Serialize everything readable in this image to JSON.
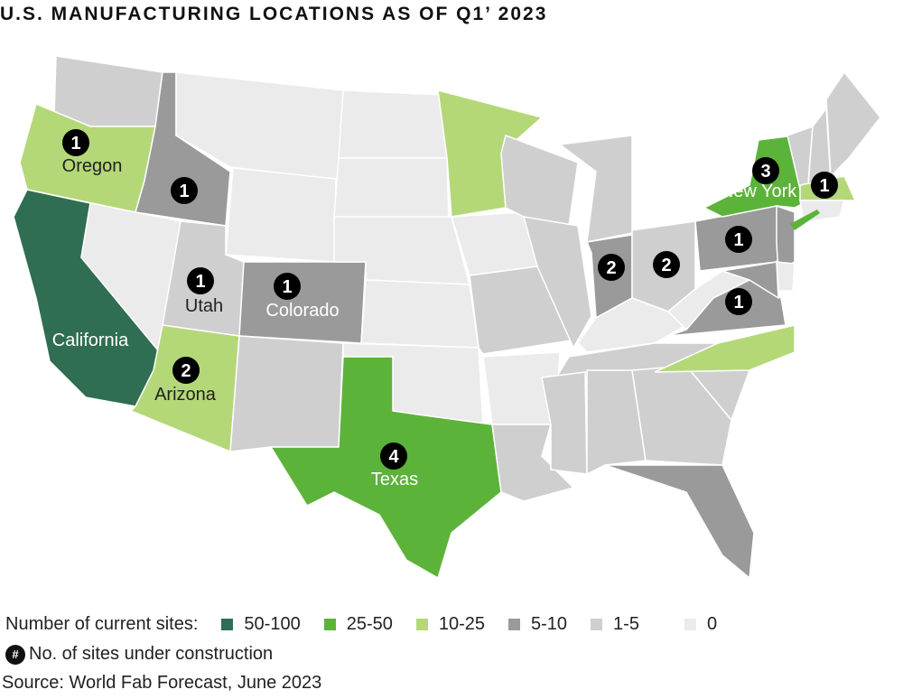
{
  "title": "U.S. MANUFACTURING LOCATIONS AS OF Q1’ 2023",
  "legend": {
    "label": "Number of current sites:",
    "categories": [
      {
        "label": "50-100",
        "color": "#2f6e52"
      },
      {
        "label": "25-50",
        "color": "#5cb33a"
      },
      {
        "label": "10-25",
        "color": "#b4d878"
      },
      {
        "label": "5-10",
        "color": "#9a9a9a"
      },
      {
        "label": "1-5",
        "color": "#cfcfcf"
      },
      {
        "label": "0",
        "color": "#ebebeb"
      }
    ],
    "construction_symbol": "#",
    "construction_label": "No. of sites under construction"
  },
  "source": "Source: World Fab Forecast, June 2023",
  "states": [
    {
      "name": "Washington",
      "cat": 4
    },
    {
      "name": "Oregon",
      "cat": 2,
      "label": "Oregon",
      "construction": 1
    },
    {
      "name": "California",
      "cat": 0,
      "label": "California"
    },
    {
      "name": "Nevada",
      "cat": 5
    },
    {
      "name": "Idaho",
      "cat": 3,
      "construction": 1
    },
    {
      "name": "Montana",
      "cat": 5
    },
    {
      "name": "Wyoming",
      "cat": 5
    },
    {
      "name": "Utah",
      "cat": 4,
      "label": "Utah",
      "construction": 1
    },
    {
      "name": "Arizona",
      "cat": 2,
      "label": "Arizona",
      "construction": 2
    },
    {
      "name": "Colorado",
      "cat": 3,
      "label": "Colorado",
      "construction": 1
    },
    {
      "name": "New Mexico",
      "cat": 4
    },
    {
      "name": "North Dakota",
      "cat": 5
    },
    {
      "name": "South Dakota",
      "cat": 5
    },
    {
      "name": "Nebraska",
      "cat": 5
    },
    {
      "name": "Kansas",
      "cat": 5
    },
    {
      "name": "Oklahoma",
      "cat": 5
    },
    {
      "name": "Texas",
      "cat": 1,
      "label": "Texas",
      "construction": 4
    },
    {
      "name": "Minnesota",
      "cat": 2
    },
    {
      "name": "Iowa",
      "cat": 5
    },
    {
      "name": "Missouri",
      "cat": 4
    },
    {
      "name": "Arkansas",
      "cat": 5
    },
    {
      "name": "Louisiana",
      "cat": 4
    },
    {
      "name": "Wisconsin",
      "cat": 4
    },
    {
      "name": "Illinois",
      "cat": 4
    },
    {
      "name": "Michigan",
      "cat": 4
    },
    {
      "name": "Indiana",
      "cat": 3,
      "construction": 2
    },
    {
      "name": "Ohio",
      "cat": 4,
      "construction": 2
    },
    {
      "name": "Kentucky",
      "cat": 5
    },
    {
      "name": "Tennessee",
      "cat": 4
    },
    {
      "name": "Mississippi",
      "cat": 4
    },
    {
      "name": "Alabama",
      "cat": 4
    },
    {
      "name": "Georgia",
      "cat": 4
    },
    {
      "name": "Florida",
      "cat": 3
    },
    {
      "name": "South Carolina",
      "cat": 4
    },
    {
      "name": "North Carolina",
      "cat": 2
    },
    {
      "name": "Virginia",
      "cat": 3,
      "construction": 1
    },
    {
      "name": "West Virginia",
      "cat": 5
    },
    {
      "name": "Pennsylvania",
      "cat": 3,
      "construction": 1
    },
    {
      "name": "New York",
      "cat": 1,
      "label": "New York",
      "construction": 3
    },
    {
      "name": "New Jersey",
      "cat": 3
    },
    {
      "name": "Maryland",
      "cat": 3
    },
    {
      "name": "Delaware",
      "cat": 5
    },
    {
      "name": "Vermont",
      "cat": 4
    },
    {
      "name": "New Hampshire",
      "cat": 4
    },
    {
      "name": "Maine",
      "cat": 4
    },
    {
      "name": "Massachusetts",
      "cat": 2,
      "construction": 1
    },
    {
      "name": "Connecticut",
      "cat": 5
    }
  ]
}
